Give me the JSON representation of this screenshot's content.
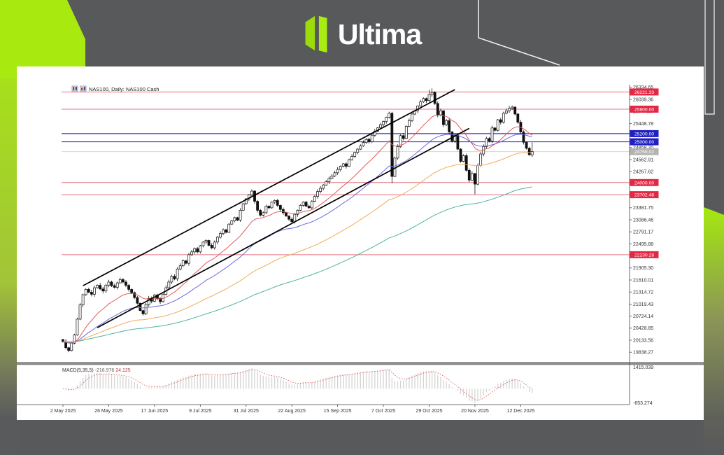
{
  "branding": {
    "logo_text": "Ultima",
    "accent_color": "#a7e90f",
    "background_color": "#58595b"
  },
  "chart": {
    "symbol_header": "NAS100, Daily:  NAS100 Cash",
    "macd_header": {
      "label": "MACD(5,35,5)",
      "value_main": "-216.976",
      "value_signal": "24.125"
    }
  },
  "chart_data": {
    "type": "candlestick",
    "symbol": "NAS100",
    "timeframe": "Daily",
    "title": "NAS100 Cash Daily with MACD(5,35,5)",
    "x_labels": [
      "2 May 2025",
      "26 May 2025",
      "17 Jun 2025",
      "9 Jul 2025",
      "31 Jul 2025",
      "22 Aug 2025",
      "15 Sep 2025",
      "7 Oct 2025",
      "29 Oct 2025",
      "20 Nov 2025",
      "12 Dec 2025"
    ],
    "bars_per_label": 16,
    "first_open": 20150,
    "closes": [
      20100,
      19950,
      19880,
      20060,
      20260,
      20650,
      21000,
      21250,
      21380,
      21310,
      21260,
      21420,
      21480,
      21390,
      21340,
      21480,
      21560,
      21470,
      21430,
      21540,
      21620,
      21560,
      21480,
      21380,
      21300,
      21180,
      21040,
      20860,
      20780,
      21010,
      21160,
      21090,
      21240,
      21160,
      21080,
      21260,
      21420,
      21560,
      21700,
      21640,
      21880,
      21960,
      22080,
      22020,
      22230,
      22300,
      22380,
      22300,
      22450,
      22540,
      22580,
      22460,
      22400,
      22540,
      22660,
      22750,
      22840,
      22780,
      22980,
      23060,
      23140,
      23080,
      23320,
      23480,
      23600,
      23700,
      23790,
      23540,
      23320,
      23200,
      23260,
      23420,
      23380,
      23520,
      23560,
      23440,
      23340,
      23260,
      23180,
      23100,
      23040,
      23220,
      23320,
      23440,
      23520,
      23420,
      23380,
      23540,
      23660,
      23780,
      23860,
      23940,
      24020,
      24100,
      24160,
      24240,
      24320,
      24400,
      24460,
      24400,
      24560,
      24640,
      24740,
      24820,
      24900,
      24980,
      25060,
      25000,
      25160,
      25260,
      25340,
      25420,
      25500,
      25600,
      25700,
      24150,
      24600,
      24880,
      25150,
      25080,
      25380,
      25520,
      25680,
      25760,
      25880,
      25980,
      26060,
      26010,
      26160,
      26210,
      25940,
      25660,
      25760,
      25420,
      25520,
      25240,
      25020,
      25160,
      24820,
      24520,
      24660,
      24300,
      24060,
      24220,
      23960,
      24420,
      24700,
      24880,
      25080,
      25020,
      25340,
      25280,
      25540,
      25480,
      25700,
      25760,
      25820,
      25850,
      25680,
      25480,
      25240,
      24990,
      24840,
      24680,
      24760
    ],
    "wick_overrides": {
      "2": {
        "low": 19838
      },
      "115": {
        "low": 23985
      },
      "128": {
        "high": 26280
      },
      "129": {
        "high": 26310
      },
      "144": {
        "low": 23710
      },
      "156": {
        "high": 25880
      },
      "157": {
        "high": 25890
      },
      "164": {
        "high": 24985
      }
    },
    "y_ticks": [
      26334.65,
      26039.36,
      25744.07,
      25448.78,
      25153.49,
      24858.2,
      24562.91,
      24267.62,
      23381.75,
      23086.46,
      22791.17,
      22495.88,
      21905.3,
      21610.01,
      21314.72,
      21019.43,
      20724.14,
      20428.85,
      20133.56,
      19838.27
    ],
    "macd_scale": {
      "top": "1415.039",
      "bottom": "-653.274"
    },
    "h_lines": [
      {
        "price": 26221.33,
        "label": "26221.33",
        "color": "red"
      },
      {
        "price": 25800.0,
        "label": "25800.00",
        "color": "red"
      },
      {
        "price": 25200.0,
        "label": "25200.00",
        "color": "blue"
      },
      {
        "price": 25000.0,
        "label": "25000.00",
        "color": "blue"
      },
      {
        "price": 24759.02,
        "label": "24759.02",
        "color": "gray"
      },
      {
        "price": 24000.0,
        "label": "24000.00",
        "color": "red"
      },
      {
        "price": 23702.48,
        "label": "23702.48",
        "color": "red"
      },
      {
        "price": 22230.28,
        "label": "22230.28",
        "color": "red"
      }
    ],
    "trend_lines": [
      {
        "from_bar": 7,
        "from_price": 21470,
        "to_bar": 137,
        "to_price": 26280
      },
      {
        "from_bar": 12,
        "from_price": 20440,
        "to_bar": 142,
        "to_price": 25330
      }
    ],
    "ma_series": [
      {
        "name": "fast-ma",
        "period": 18,
        "color": "#e05c5c"
      },
      {
        "name": "medium-ma",
        "period": 40,
        "color": "#6a6ade"
      },
      {
        "name": "slow-ma",
        "period": 80,
        "color": "#f2ab57"
      },
      {
        "name": "long-ma",
        "period": 150,
        "color": "#4fb3a2"
      }
    ],
    "macd": {
      "fast": 5,
      "slow": 35,
      "signal": 5
    },
    "colors": {
      "line_red": "#e4737f",
      "badge_red": "#e32845",
      "line_blue": "#3535cd",
      "badge_blue": "#2020c0",
      "line_gray": "#d4d4d4",
      "badge_gray": "#b3b3b3",
      "candle": "#111111",
      "macd_hist": "#d4d4d4",
      "macd_signal": "#e06060",
      "axis_text": "#333333",
      "trend_line": "#000000"
    }
  }
}
